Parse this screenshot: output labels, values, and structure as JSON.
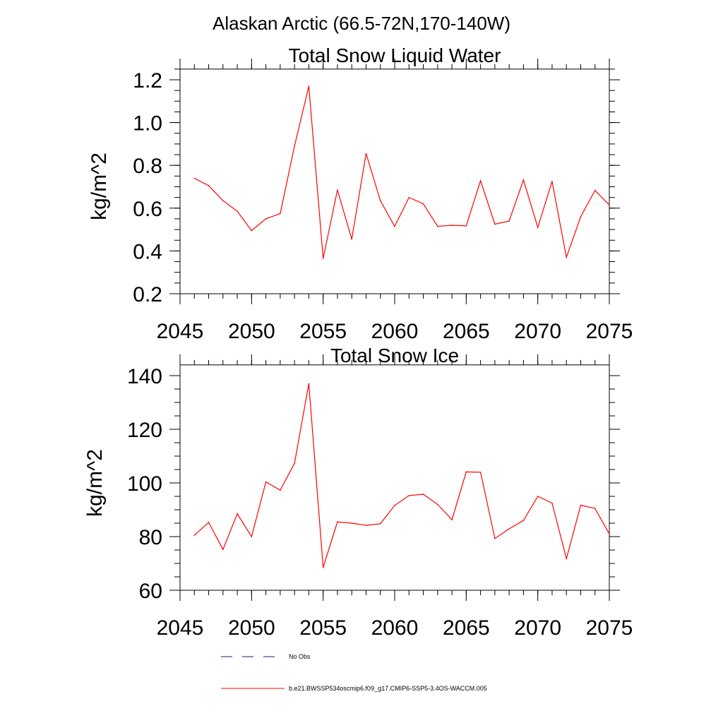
{
  "suptitle": "Alaskan Arctic (66.5-72N,170-140W)",
  "chart_data": [
    {
      "type": "line",
      "title": "Total Snow Liquid Water",
      "xlabel": "",
      "ylabel": "kg/m^2",
      "xlim": [
        2045,
        2075
      ],
      "ylim": [
        0.2,
        1.25
      ],
      "xticks": [
        2045,
        2050,
        2055,
        2060,
        2065,
        2070,
        2075
      ],
      "xtick_labels": [
        "2045",
        "2050",
        "2055",
        "2060",
        "2065",
        "2070",
        "2075"
      ],
      "yticks": [
        0.2,
        0.4,
        0.6,
        0.8,
        1.0,
        1.2
      ],
      "ytick_labels": [
        "0.2",
        "0.4",
        "0.6",
        "0.8",
        "1.0",
        "1.2"
      ],
      "yminor_step": 0.05,
      "xminor_step": 1,
      "series": [
        {
          "name": "b.e21.BWSSP534oscmip6.f09_g17.CMIP6-SSP5-3.4OS-WACCM.005",
          "color": "#ff0000",
          "x": [
            2046,
            2047,
            2048,
            2049,
            2050,
            2051,
            2052,
            2053,
            2054,
            2055,
            2056,
            2057,
            2058,
            2059,
            2060,
            2061,
            2062,
            2063,
            2064,
            2065,
            2066,
            2067,
            2068,
            2069,
            2070,
            2071,
            2072,
            2073,
            2074,
            2075
          ],
          "values": [
            0.74,
            0.705,
            0.635,
            0.585,
            0.495,
            0.55,
            0.575,
            0.89,
            1.17,
            0.365,
            0.685,
            0.455,
            0.855,
            0.635,
            0.515,
            0.65,
            0.62,
            0.515,
            0.52,
            0.517,
            0.728,
            0.525,
            0.54,
            0.732,
            0.51,
            0.725,
            0.37,
            0.56,
            0.683,
            0.615
          ]
        }
      ]
    },
    {
      "type": "line",
      "title": "Total Snow Ice",
      "xlabel": "",
      "ylabel": "kg/m^2",
      "xlim": [
        2045,
        2075
      ],
      "ylim": [
        60,
        144
      ],
      "xticks": [
        2045,
        2050,
        2055,
        2060,
        2065,
        2070,
        2075
      ],
      "xtick_labels": [
        "2045",
        "2050",
        "2055",
        "2060",
        "2065",
        "2070",
        "2075"
      ],
      "yticks": [
        60,
        80,
        100,
        120,
        140
      ],
      "ytick_labels": [
        "60",
        "80",
        "100",
        "120",
        "140"
      ],
      "yminor_step": 5,
      "xminor_step": 1,
      "series": [
        {
          "name": "b.e21.BWSSP534oscmip6.f09_g17.CMIP6-SSP5-3.4OS-WACCM.005",
          "color": "#ff0000",
          "x": [
            2046,
            2047,
            2048,
            2049,
            2050,
            2051,
            2052,
            2053,
            2054,
            2055,
            2056,
            2057,
            2058,
            2059,
            2060,
            2061,
            2062,
            2063,
            2064,
            2065,
            2066,
            2067,
            2068,
            2069,
            2070,
            2071,
            2072,
            2073,
            2074,
            2075
          ],
          "values": [
            80.5,
            85.3,
            75.2,
            88.5,
            80.0,
            100.4,
            97.3,
            107.3,
            137.0,
            68.5,
            85.5,
            85.0,
            84.2,
            84.8,
            91.6,
            95.3,
            95.8,
            92.0,
            86.3,
            104.1,
            104.0,
            79.3,
            82.9,
            86.0,
            95.0,
            92.5,
            71.8,
            91.7,
            90.5,
            81.0
          ]
        }
      ]
    }
  ],
  "legend": {
    "placement": "bottom-center",
    "items": [
      {
        "label": "No Obs",
        "color": "#1a1a80",
        "style": "dashed"
      },
      {
        "label": "b.e21.BWSSP534oscmip6.f09_g17.CMIP6-SSP5-3.4OS-WACCM.005",
        "color": "#ff0000",
        "style": "solid"
      }
    ]
  }
}
